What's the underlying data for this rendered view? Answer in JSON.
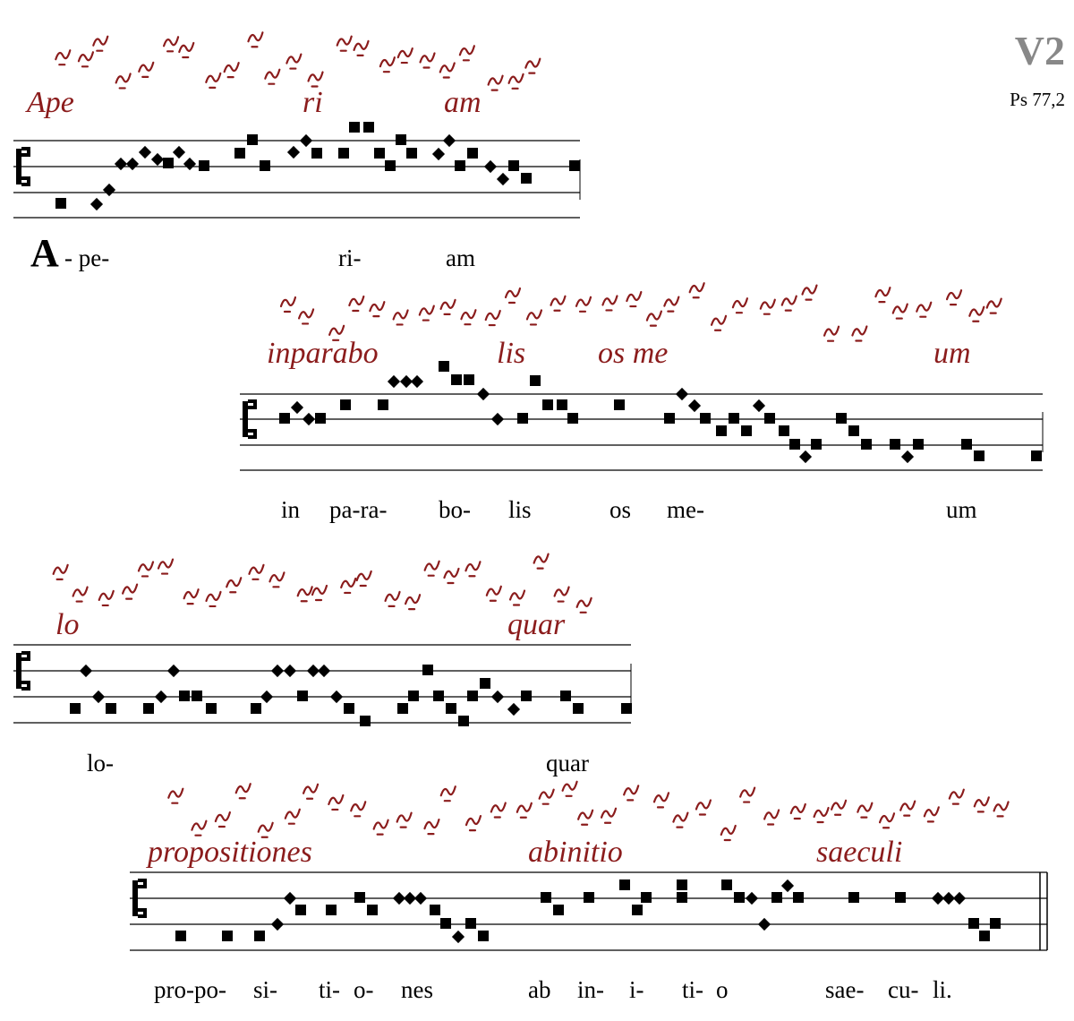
{
  "header": {
    "mode": "V2",
    "reference": "Ps 77,2"
  },
  "systems": [
    {
      "initial": "A",
      "lyrics": [
        "- pe-",
        "ri-",
        "am"
      ],
      "manuscript": [
        "Ape",
        "ri",
        "am"
      ]
    },
    {
      "lyrics": [
        "in",
        "pa-ra-",
        "bo-",
        "lis",
        "os",
        "me-",
        "um"
      ],
      "manuscript": [
        "inparabo",
        "lis",
        "os me",
        "um"
      ]
    },
    {
      "lyrics": [
        "lo-",
        "quar"
      ],
      "manuscript": [
        "lo",
        "quar"
      ]
    },
    {
      "lyrics": [
        "pro-po-",
        "si-",
        "ti-",
        "o-",
        "nes",
        "ab",
        "in-",
        "i-",
        "ti-",
        "o",
        "sae-",
        "cu-",
        "li."
      ],
      "manuscript": [
        "propositiones",
        "abinitio",
        "saeculi"
      ]
    }
  ]
}
